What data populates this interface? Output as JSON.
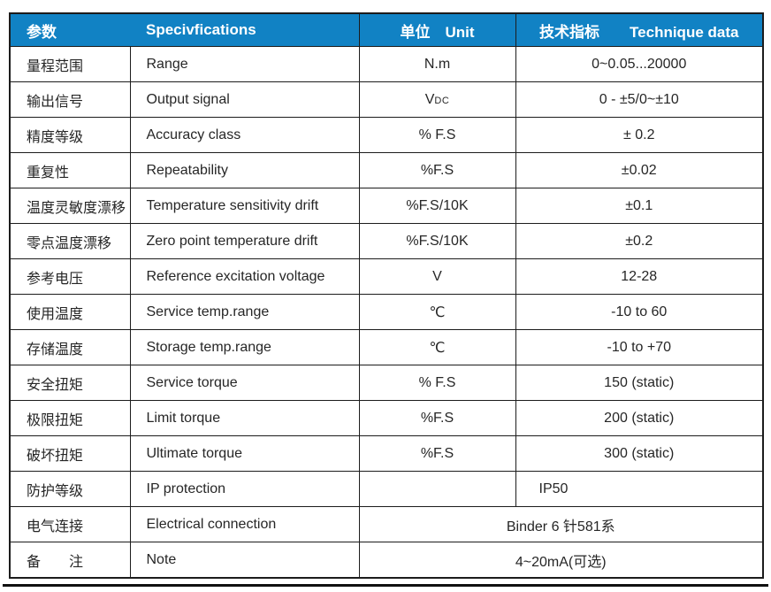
{
  "table": {
    "header": {
      "param": "参数",
      "spec": "Specivfications",
      "unit": "单位　Unit",
      "data": "技术指标　　Technique data"
    },
    "rows": [
      {
        "cn": "量程范围",
        "en": "Range",
        "unit": "N.m",
        "value": "0~0.05...20000"
      },
      {
        "cn": "输出信号",
        "en": "Output signal",
        "unit": "V",
        "unit_sub": "DC",
        "value": "0 - ±5/0~±10"
      },
      {
        "cn": "精度等级",
        "en": "Accuracy class",
        "unit": "% F.S",
        "value": "± 0.2"
      },
      {
        "cn": "重复性",
        "en": "Repeatability",
        "unit": "%F.S",
        "value": "±0.02"
      },
      {
        "cn": "温度灵敏度漂移",
        "en": "Temperature sensitivity drift",
        "unit": "%F.S/10K",
        "value": "±0.1"
      },
      {
        "cn": "零点温度漂移",
        "en": "Zero point temperature drift",
        "unit": "%F.S/10K",
        "value": "±0.2"
      },
      {
        "cn": "参考电压",
        "en": "Reference excitation voltage",
        "unit": "V",
        "value": "12-28"
      },
      {
        "cn": "使用温度",
        "en": "Service temp.range",
        "unit": "℃",
        "value": "-10 to 60"
      },
      {
        "cn": "存储温度",
        "en": "Storage temp.range",
        "unit": "℃",
        "value": "-10 to +70"
      },
      {
        "cn": "安全扭矩",
        "en": "Service torque",
        "unit": "% F.S",
        "value": "150 (static)"
      },
      {
        "cn": "极限扭矩",
        "en": "Limit torque",
        "unit": "%F.S",
        "value": "200 (static)"
      },
      {
        "cn": "破坏扭矩",
        "en": "Ultimate torque",
        "unit": "%F.S",
        "value": "300 (static)"
      },
      {
        "cn": "防护等级",
        "en": "IP protection",
        "unit": "",
        "value": "IP50"
      },
      {
        "cn": "电气连接",
        "en": "Electrical connection",
        "merged_value": "Binder 6 针581系"
      },
      {
        "cn": "备　　注",
        "en": "Note",
        "merged_value": "4~20mA(可选)"
      }
    ],
    "colors": {
      "header_bg": "#1182c4",
      "header_text": "#ffffff",
      "border": "#1c1c1c",
      "body_text": "#262626"
    }
  }
}
